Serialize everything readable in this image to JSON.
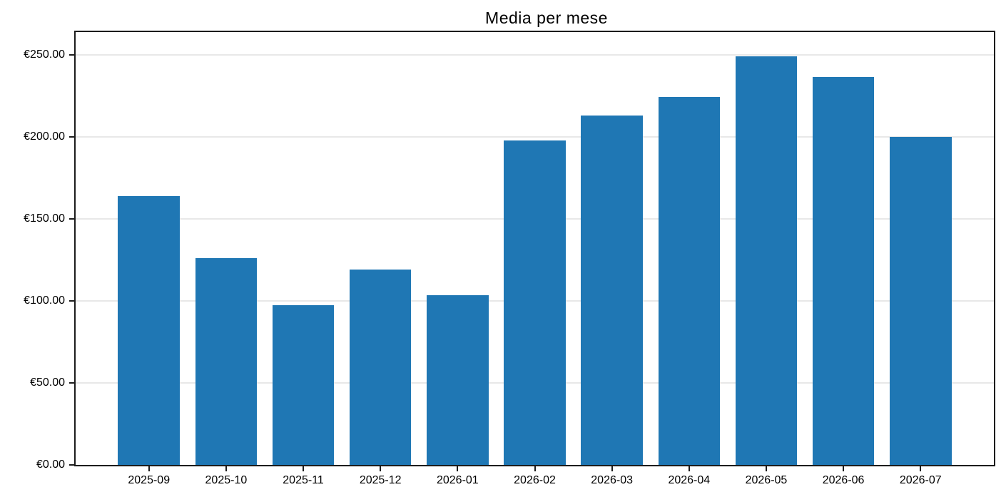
{
  "chart_data": {
    "type": "bar",
    "title": "Media per mese",
    "categories": [
      "2025-09",
      "2025-10",
      "2025-11",
      "2025-12",
      "2026-01",
      "2026-02",
      "2026-03",
      "2026-04",
      "2026-05",
      "2026-06",
      "2026-07"
    ],
    "values": [
      163.6,
      126.2,
      97.2,
      119.0,
      103.2,
      197.7,
      212.9,
      224.0,
      249.1,
      236.4,
      199.9
    ],
    "currency": "€",
    "y_ticks": [
      0,
      50,
      100,
      150,
      200,
      250
    ],
    "y_tick_labels": [
      "€0.00",
      "€50.00",
      "€100.00",
      "€150.00",
      "€200.00",
      "€250.00"
    ],
    "ylim": [
      0,
      263.7
    ],
    "xlabel": "",
    "ylabel": "",
    "grid": "horizontal",
    "legend": "none",
    "colors": {
      "bar": "#1f77b4",
      "gridline": "#e8e8e8",
      "spine": "#1c1c1c",
      "text": "#000000",
      "background": "#ffffff"
    }
  }
}
